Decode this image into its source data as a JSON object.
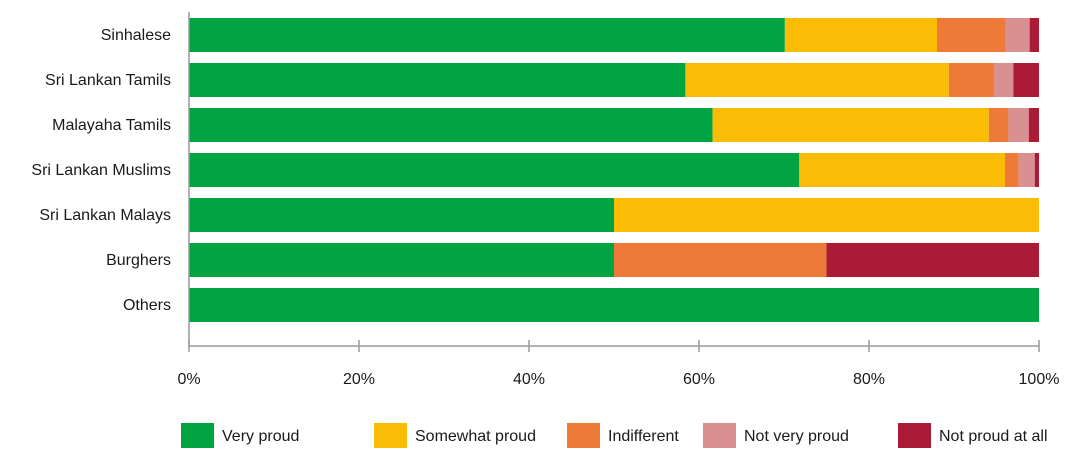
{
  "chart_data": {
    "type": "bar",
    "orientation": "horizontal",
    "stacked": true,
    "title": "",
    "xlabel": "",
    "ylabel": "",
    "xlim": [
      0,
      100
    ],
    "x_ticks": [
      "0%",
      "20%",
      "40%",
      "60%",
      "80%",
      "100%"
    ],
    "grid": false,
    "legend_position": "bottom",
    "categories": [
      "Sinhalese",
      "Sri Lankan Tamils",
      "Malayaha Tamils",
      "Sri Lankan Muslims",
      "Sri Lankan Malays",
      "Burghers",
      "Others"
    ],
    "series": [
      {
        "name": "Very proud",
        "color": "#00a443",
        "values": [
          70.1,
          58.4,
          61.6,
          71.8,
          50,
          50,
          100
        ]
      },
      {
        "name": "Somewhat proud",
        "color": "#fbbc05",
        "values": [
          17.9,
          31.0,
          32.5,
          24.2,
          50,
          0,
          0
        ]
      },
      {
        "name": "Indifferent",
        "color": "#ee7a3a",
        "values": [
          8.1,
          5.3,
          2.3,
          1.6,
          0,
          25,
          0
        ]
      },
      {
        "name": "Not very proud",
        "color": "#d99090",
        "values": [
          2.8,
          2.3,
          2.4,
          1.9,
          0,
          0,
          0
        ]
      },
      {
        "name": "Not proud at all",
        "color": "#ab1a37",
        "values": [
          1.1,
          3.0,
          1.2,
          0.5,
          0,
          25,
          0
        ]
      }
    ]
  }
}
